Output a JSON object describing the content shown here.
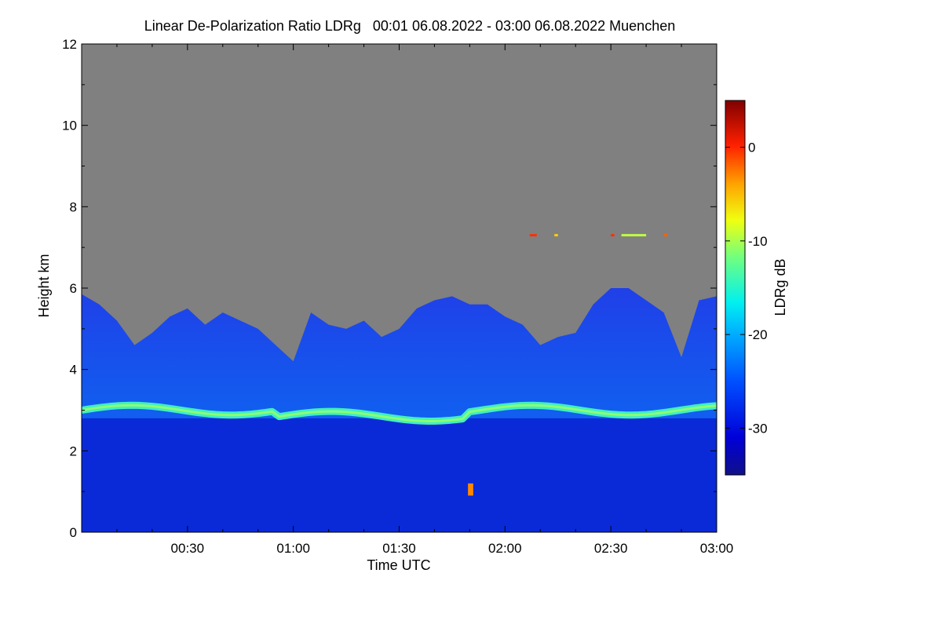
{
  "chart_data": {
    "type": "heatmap",
    "title": "Linear De-Polarization Ratio LDRg   00:01 06.08.2022 - 03:00 06.08.2022 Muenchen",
    "xlabel": "Time UTC",
    "ylabel": "Height km",
    "x_range_minutes": [
      0,
      180
    ],
    "y_range_km": [
      0,
      12
    ],
    "x_ticks": [
      {
        "minute": 30,
        "label": "00:30"
      },
      {
        "minute": 60,
        "label": "01:00"
      },
      {
        "minute": 90,
        "label": "01:30"
      },
      {
        "minute": 120,
        "label": "02:00"
      },
      {
        "minute": 150,
        "label": "02:30"
      },
      {
        "minute": 180,
        "label": "03:00"
      }
    ],
    "y_ticks": [
      {
        "value": 0,
        "label": "0"
      },
      {
        "value": 2,
        "label": "2"
      },
      {
        "value": 4,
        "label": "4"
      },
      {
        "value": 6,
        "label": "6"
      },
      {
        "value": 8,
        "label": "8"
      },
      {
        "value": 10,
        "label": "10"
      },
      {
        "value": 12,
        "label": "12"
      }
    ],
    "colorbar": {
      "label": "LDRg dB",
      "range_db": [
        -35,
        5
      ],
      "ticks": [
        {
          "value": 0,
          "label": "0"
        },
        {
          "value": -10,
          "label": "-10"
        },
        {
          "value": -20,
          "label": "-20"
        },
        {
          "value": -30,
          "label": "-30"
        }
      ],
      "no_signal_color": "#808080"
    },
    "features": {
      "melting_layer_km": 3.0,
      "cloud_top_profile_km": [
        [
          0,
          5.85
        ],
        [
          5,
          5.6
        ],
        [
          10,
          5.2
        ],
        [
          15,
          4.6
        ],
        [
          20,
          4.9
        ],
        [
          25,
          5.3
        ],
        [
          30,
          5.5
        ],
        [
          35,
          5.1
        ],
        [
          40,
          5.4
        ],
        [
          45,
          5.2
        ],
        [
          50,
          5.0
        ],
        [
          55,
          4.6
        ],
        [
          60,
          4.2
        ],
        [
          65,
          5.4
        ],
        [
          70,
          5.1
        ],
        [
          75,
          5.0
        ],
        [
          80,
          5.2
        ],
        [
          85,
          4.8
        ],
        [
          90,
          5.0
        ],
        [
          95,
          5.5
        ],
        [
          100,
          5.7
        ],
        [
          105,
          5.8
        ],
        [
          110,
          5.6
        ],
        [
          115,
          5.6
        ],
        [
          120,
          5.3
        ],
        [
          125,
          5.1
        ],
        [
          130,
          4.6
        ],
        [
          135,
          4.8
        ],
        [
          140,
          4.9
        ],
        [
          145,
          5.6
        ],
        [
          150,
          6.0
        ],
        [
          155,
          6.0
        ],
        [
          160,
          5.7
        ],
        [
          165,
          5.4
        ],
        [
          170,
          4.3
        ],
        [
          175,
          5.7
        ],
        [
          180,
          5.8
        ]
      ],
      "high_layer_km": 7.3
    }
  }
}
